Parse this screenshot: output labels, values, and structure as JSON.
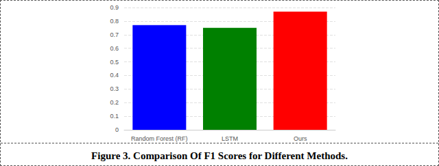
{
  "chart_data": {
    "type": "bar",
    "title": "Figure 3. Comparison Of F1 Scores for Different Methods.",
    "categories": [
      "Random Forest (RF)",
      "LSTM",
      "Ours"
    ],
    "values": [
      0.77,
      0.75,
      0.87
    ],
    "colors": [
      "#0000ff",
      "#008000",
      "#ff0000"
    ],
    "ylim": [
      0,
      0.9
    ],
    "yticks": [
      0,
      0.1,
      0.2,
      0.3,
      0.4,
      0.5,
      0.6,
      0.7,
      0.8,
      0.9
    ],
    "grid": true
  }
}
